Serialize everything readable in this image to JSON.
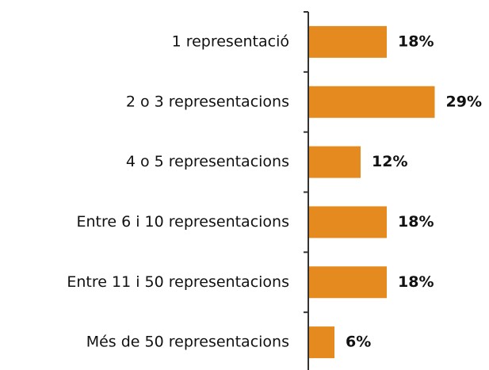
{
  "chart_data": {
    "type": "bar",
    "orientation": "horizontal",
    "categories": [
      "1 representació",
      "2 o 3 representacions",
      "4 o 5 representacions",
      "Entre 6 i 10 representacions",
      "Entre 11 i 50 representacions",
      "Més de 50 representacions"
    ],
    "values": [
      18,
      29,
      12,
      18,
      18,
      6
    ],
    "value_labels": [
      "18%",
      "29%",
      "12%",
      "18%",
      "18%",
      "6%"
    ],
    "color": "#e58a1f"
  }
}
